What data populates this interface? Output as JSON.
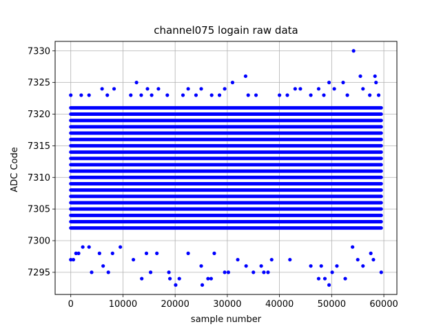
{
  "chart_data": {
    "type": "scatter",
    "title": "channel075 logain raw data",
    "xlabel": "sample number",
    "ylabel": "ADC Code",
    "xlim": [
      -3000,
      62500
    ],
    "ylim": [
      7291.5,
      7331.5
    ],
    "xticks": [
      0,
      10000,
      20000,
      30000,
      40000,
      50000,
      60000
    ],
    "yticks": [
      7295,
      7300,
      7305,
      7310,
      7315,
      7320,
      7325,
      7330
    ],
    "grid": true,
    "marker_color": "#0000ff",
    "x_range_of_samples": [
      0,
      59500
    ],
    "dense_band": [
      7302,
      7321
    ],
    "series": [
      {
        "points": [
          [
            0,
            7297
          ],
          [
            500,
            7297
          ],
          [
            1000,
            7298
          ],
          [
            1500,
            7298
          ],
          [
            2300,
            7299
          ],
          [
            3500,
            7299
          ],
          [
            4000,
            7295
          ],
          [
            5500,
            7298
          ],
          [
            6200,
            7296
          ],
          [
            7200,
            7295
          ],
          [
            8000,
            7298
          ],
          [
            9500,
            7299
          ],
          [
            12000,
            7297
          ],
          [
            13600,
            7294
          ],
          [
            14500,
            7298
          ],
          [
            15300,
            7295
          ],
          [
            16500,
            7298
          ],
          [
            18800,
            7295
          ],
          [
            19000,
            7294
          ],
          [
            20100,
            7293
          ],
          [
            20800,
            7294
          ],
          [
            22500,
            7298
          ],
          [
            25000,
            7296
          ],
          [
            25200,
            7293
          ],
          [
            26300,
            7294
          ],
          [
            26900,
            7294
          ],
          [
            27500,
            7298
          ],
          [
            29500,
            7295
          ],
          [
            30200,
            7295
          ],
          [
            32000,
            7297
          ],
          [
            33600,
            7296
          ],
          [
            35000,
            7295
          ],
          [
            36500,
            7296
          ],
          [
            37000,
            7295
          ],
          [
            37800,
            7295
          ],
          [
            38500,
            7297
          ],
          [
            42000,
            7297
          ],
          [
            46000,
            7296
          ],
          [
            47500,
            7294
          ],
          [
            48000,
            7296
          ],
          [
            48700,
            7294
          ],
          [
            49500,
            7293
          ],
          [
            50100,
            7295
          ],
          [
            51000,
            7296
          ],
          [
            52600,
            7294
          ],
          [
            54000,
            7299
          ],
          [
            55000,
            7297
          ],
          [
            56000,
            7296
          ],
          [
            57500,
            7298
          ],
          [
            58000,
            7297
          ],
          [
            59500,
            7295
          ],
          [
            0,
            7323
          ],
          [
            2000,
            7323
          ],
          [
            3500,
            7323
          ],
          [
            6000,
            7324
          ],
          [
            7000,
            7323
          ],
          [
            8300,
            7324
          ],
          [
            11500,
            7323
          ],
          [
            12600,
            7325
          ],
          [
            13500,
            7323
          ],
          [
            14700,
            7324
          ],
          [
            15500,
            7323
          ],
          [
            16800,
            7324
          ],
          [
            18500,
            7323
          ],
          [
            21500,
            7323
          ],
          [
            22500,
            7324
          ],
          [
            24000,
            7323
          ],
          [
            25000,
            7324
          ],
          [
            27000,
            7323
          ],
          [
            28500,
            7323
          ],
          [
            29500,
            7324
          ],
          [
            31000,
            7325
          ],
          [
            33500,
            7326
          ],
          [
            34000,
            7323
          ],
          [
            35500,
            7323
          ],
          [
            40000,
            7323
          ],
          [
            41500,
            7323
          ],
          [
            43000,
            7324
          ],
          [
            44000,
            7324
          ],
          [
            46000,
            7323
          ],
          [
            47500,
            7324
          ],
          [
            48500,
            7323
          ],
          [
            49500,
            7325
          ],
          [
            50500,
            7324
          ],
          [
            52200,
            7325
          ],
          [
            53000,
            7323
          ],
          [
            54200,
            7330
          ],
          [
            55500,
            7326
          ],
          [
            56000,
            7324
          ],
          [
            57300,
            7323
          ],
          [
            58300,
            7326
          ],
          [
            58500,
            7325
          ],
          [
            59000,
            7323
          ]
        ]
      }
    ]
  }
}
